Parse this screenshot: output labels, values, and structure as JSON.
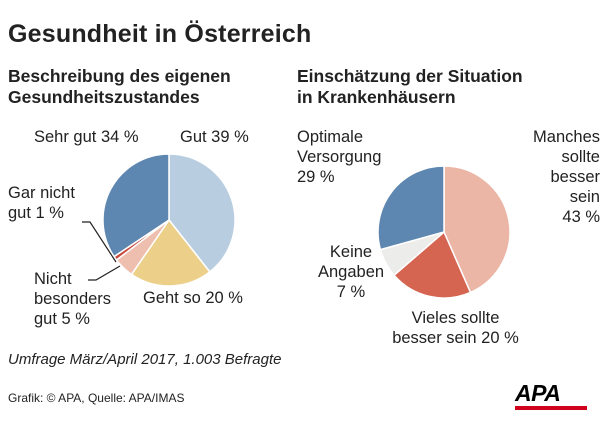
{
  "title": "Gesundheit in Österreich",
  "note": "Umfrage März/April 2017, 1.003 Befragte",
  "source": "Grafik: © APA, Quelle: APA/IMAS",
  "logo": "APA",
  "colors": {
    "brand_red": "#d0021b"
  },
  "chart_data": [
    {
      "type": "pie",
      "title": "Beschreibung des eigenen Gesundheitszustandes",
      "title_lines": [
        "Beschreibung des eigenen",
        "Gesundheitszustandes"
      ],
      "unit": "%",
      "slices": [
        {
          "name": "Gut",
          "value": 39,
          "label": "Gut 39 %",
          "color": "#b9cde0"
        },
        {
          "name": "Geht so",
          "value": 20,
          "label": "Geht so 20 %",
          "color": "#ecd089"
        },
        {
          "name": "Nicht besonders gut",
          "value": 5,
          "label": "Nicht\nbesonders\ngut 5 %",
          "color": "#eebfae"
        },
        {
          "name": "Gar nicht gut",
          "value": 1,
          "label": "Gar nicht\ngut 1 %",
          "color": "#c84a3c"
        },
        {
          "name": "Sehr gut",
          "value": 34,
          "label": "Sehr gut 34 %",
          "color": "#5d86b0"
        }
      ]
    },
    {
      "type": "pie",
      "title": "Einschätzung der Situation in Krankenhäusern",
      "title_lines": [
        "Einschätzung der Situation",
        "in Krankenhäusern"
      ],
      "unit": "%",
      "slices": [
        {
          "name": "Manches sollte besser sein",
          "value": 43,
          "label": "Manches\nsollte\nbesser\nsein\n43 %",
          "color": "#ebb6a6"
        },
        {
          "name": "Vieles sollte besser sein",
          "value": 20,
          "label": "Vieles sollte\nbesser sein 20 %",
          "color": "#d56450"
        },
        {
          "name": "Keine Angaben",
          "value": 7,
          "label": "Keine\nAngaben\n7 %",
          "color": "#ececea"
        },
        {
          "name": "Optimale Versorgung",
          "value": 29,
          "label": "Optimale\nVersorgung\n29 %",
          "color": "#5d86b0"
        }
      ]
    }
  ]
}
